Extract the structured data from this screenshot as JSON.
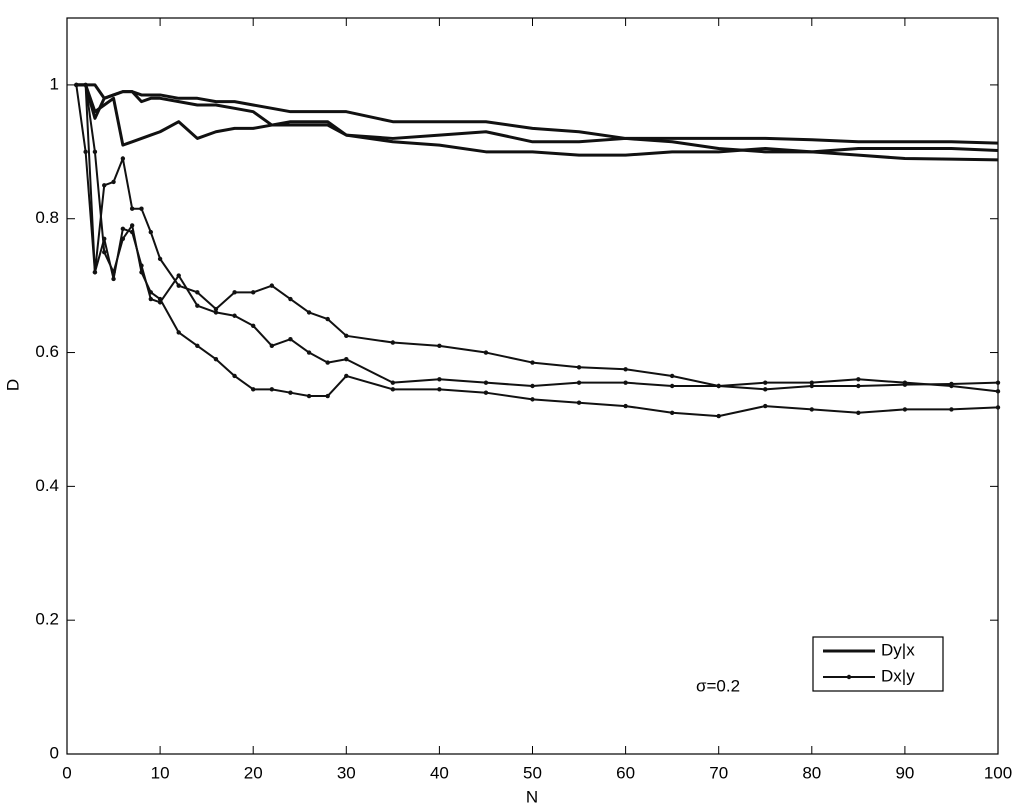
{
  "chart_data": {
    "type": "line",
    "xlabel": "N",
    "ylabel": "D",
    "annotation": "σ=0.2",
    "xlim": [
      0,
      100
    ],
    "ylim": [
      0,
      1.1
    ],
    "xticks": [
      0,
      10,
      20,
      30,
      40,
      50,
      60,
      70,
      80,
      90,
      100
    ],
    "yticks": [
      0,
      0.2,
      0.4,
      0.6,
      0.8,
      1
    ],
    "legend": "lower right",
    "x": [
      1,
      2,
      3,
      4,
      5,
      6,
      7,
      8,
      9,
      10,
      12,
      14,
      16,
      18,
      20,
      22,
      24,
      26,
      28,
      30,
      35,
      40,
      45,
      50,
      55,
      60,
      65,
      70,
      75,
      80,
      85,
      90,
      95,
      100
    ],
    "series": [
      {
        "name": "Dy|x",
        "color": "#111111",
        "width": 3,
        "marker": false,
        "values": [
          [
            1,
            1,
            1,
            0.98,
            0.985,
            0.99,
            0.99,
            0.985,
            0.985,
            0.985,
            0.98,
            0.98,
            0.975,
            0.975,
            0.97,
            0.965,
            0.96,
            0.96,
            0.96,
            0.96,
            0.945,
            0.945,
            0.945,
            0.935,
            0.93,
            0.92,
            0.92,
            0.92,
            0.92,
            0.918,
            0.915,
            0.915,
            0.915,
            0.913
          ],
          [
            1,
            1,
            0.95,
            0.98,
            0.985,
            0.99,
            0.99,
            0.975,
            0.98,
            0.98,
            0.975,
            0.97,
            0.97,
            0.965,
            0.96,
            0.94,
            0.945,
            0.945,
            0.945,
            0.925,
            0.92,
            0.925,
            0.93,
            0.915,
            0.915,
            0.92,
            0.915,
            0.905,
            0.9,
            0.9,
            0.905,
            0.905,
            0.905,
            0.902
          ],
          [
            1,
            1,
            0.96,
            0.97,
            0.98,
            0.91,
            0.915,
            0.92,
            0.925,
            0.93,
            0.945,
            0.92,
            0.93,
            0.935,
            0.935,
            0.94,
            0.94,
            0.94,
            0.94,
            0.925,
            0.915,
            0.91,
            0.9,
            0.9,
            0.895,
            0.895,
            0.9,
            0.9,
            0.905,
            0.9,
            0.895,
            0.89,
            0.889,
            0.888
          ]
        ]
      },
      {
        "name": "Dx|y",
        "color": "#111111",
        "width": 2,
        "marker": true,
        "values": [
          [
            1,
            1,
            0.72,
            0.85,
            0.855,
            0.89,
            0.815,
            0.815,
            0.78,
            0.74,
            0.7,
            0.69,
            0.665,
            0.69,
            0.69,
            0.7,
            0.68,
            0.66,
            0.65,
            0.625,
            0.615,
            0.61,
            0.6,
            0.585,
            0.578,
            0.575,
            0.565,
            0.55,
            0.545,
            0.55,
            0.55,
            0.552,
            0.553,
            0.555
          ],
          [
            1,
            0.9,
            0.72,
            0.77,
            0.71,
            0.785,
            0.78,
            0.73,
            0.68,
            0.675,
            0.715,
            0.67,
            0.66,
            0.655,
            0.64,
            0.61,
            0.62,
            0.6,
            0.585,
            0.59,
            0.555,
            0.56,
            0.555,
            0.55,
            0.555,
            0.555,
            0.55,
            0.55,
            0.555,
            0.555,
            0.56,
            0.555,
            0.55,
            0.542
          ],
          [
            1,
            1,
            0.9,
            0.75,
            0.72,
            0.77,
            0.79,
            0.72,
            0.69,
            0.68,
            0.63,
            0.61,
            0.59,
            0.565,
            0.545,
            0.545,
            0.54,
            0.535,
            0.535,
            0.565,
            0.545,
            0.545,
            0.54,
            0.53,
            0.525,
            0.52,
            0.51,
            0.505,
            0.52,
            0.515,
            0.51,
            0.515,
            0.515,
            0.518
          ]
        ]
      }
    ]
  }
}
